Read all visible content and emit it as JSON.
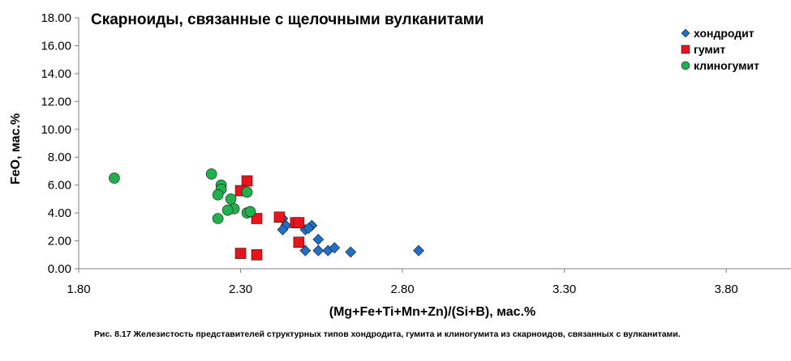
{
  "chart_data": {
    "type": "scatter",
    "title": "Скарноиды, связанные с щелочными вулканитами",
    "xlabel": "(Mg+Fe+Ti+Mn+Zn)/(Si+B), мас.%",
    "ylabel": "FeO, мас.%",
    "xlim": [
      1.8,
      4.0
    ],
    "ylim": [
      0,
      18
    ],
    "x_ticks": [
      "1.80",
      "2.30",
      "2.80",
      "3.30",
      "3.80"
    ],
    "y_ticks": [
      "0.00",
      "2.00",
      "4.00",
      "6.00",
      "8.00",
      "10.00",
      "12.00",
      "14.00",
      "16.00",
      "18.00"
    ],
    "grid": false,
    "legend_position": "top-right",
    "series": [
      {
        "name": "хондродит",
        "marker": "diamond",
        "color": "#1f6fc6",
        "points": [
          [
            2.43,
            3.6
          ],
          [
            2.44,
            3.1
          ],
          [
            2.43,
            2.8
          ],
          [
            2.5,
            2.8
          ],
          [
            2.52,
            3.1
          ],
          [
            2.51,
            2.9
          ],
          [
            2.54,
            2.1
          ],
          [
            2.5,
            1.3
          ],
          [
            2.54,
            1.3
          ],
          [
            2.57,
            1.3
          ],
          [
            2.59,
            1.5
          ],
          [
            2.64,
            1.2
          ],
          [
            2.85,
            1.3
          ]
        ]
      },
      {
        "name": "гумит",
        "marker": "square",
        "color": "#e8141b",
        "points": [
          [
            2.32,
            6.3
          ],
          [
            2.3,
            5.6
          ],
          [
            2.35,
            3.6
          ],
          [
            2.42,
            3.7
          ],
          [
            2.47,
            3.3
          ],
          [
            2.48,
            3.3
          ],
          [
            2.48,
            1.9
          ],
          [
            2.3,
            1.1
          ],
          [
            2.35,
            1.0
          ]
        ]
      },
      {
        "name": "клиногумит",
        "marker": "circle",
        "color": "#21b04b",
        "points": [
          [
            1.91,
            6.5
          ],
          [
            2.21,
            6.8
          ],
          [
            2.24,
            6.0
          ],
          [
            2.24,
            5.7
          ],
          [
            2.23,
            5.3
          ],
          [
            2.27,
            5.0
          ],
          [
            2.32,
            5.5
          ],
          [
            2.28,
            4.3
          ],
          [
            2.26,
            4.2
          ],
          [
            2.32,
            4.0
          ],
          [
            2.33,
            4.1
          ],
          [
            2.23,
            3.6
          ]
        ]
      }
    ]
  },
  "caption": "Рис. 8.17 Железистость представителей структурных типов хондродита, гумита и клиногумита из скарноидов, связанных с вулканитами."
}
